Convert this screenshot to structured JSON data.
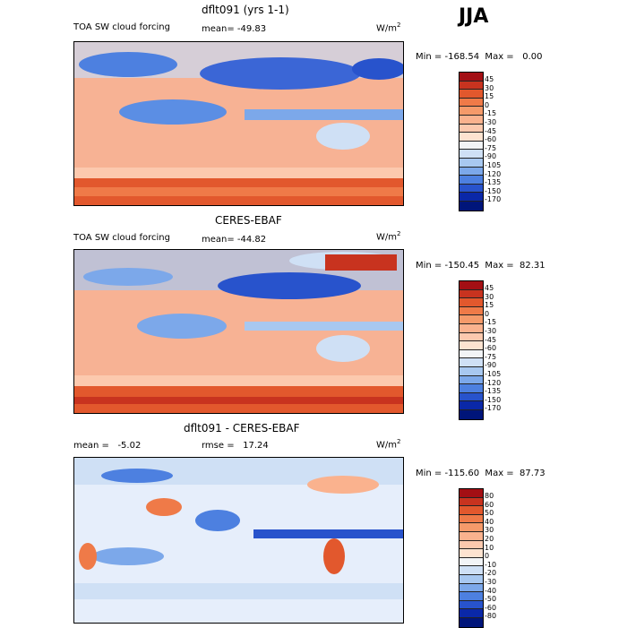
{
  "season": "JJA",
  "panels": [
    {
      "title": "dflt091 (yrs 1-1)",
      "left_label": "TOA SW cloud forcing",
      "mean_label": "mean= -49.83",
      "units": "W/m",
      "units_exp": "2",
      "minmax": "Min = -168.54  Max =   0.00",
      "colorbar_labels": [
        "45",
        "30",
        "15",
        "0",
        "-15",
        "-30",
        "-45",
        "-60",
        "-75",
        "-90",
        "-105",
        "-120",
        "-135",
        "-150",
        "-170"
      ],
      "colorbar_colors": [
        "#a30f14",
        "#c8331f",
        "#e2582d",
        "#ef7a48",
        "#f59a6a",
        "#fab28e",
        "#fcc9ae",
        "#fde3d0",
        "#f2f4f6",
        "#cfe0f5",
        "#a8c8f0",
        "#7ca8ea",
        "#4d80e0",
        "#2853cc",
        "#0a28a8",
        "#00157a"
      ]
    },
    {
      "title": "CERES-EBAF",
      "left_label": "TOA SW cloud forcing",
      "mean_label": "mean= -44.82",
      "units": "W/m",
      "units_exp": "2",
      "minmax": "Min = -150.45  Max =  82.31",
      "colorbar_labels": [
        "45",
        "30",
        "15",
        "0",
        "-15",
        "-30",
        "-45",
        "-60",
        "-75",
        "-90",
        "-105",
        "-120",
        "-135",
        "-150",
        "-170"
      ],
      "colorbar_colors": [
        "#a30f14",
        "#c8331f",
        "#e2582d",
        "#ef7a48",
        "#f59a6a",
        "#fab28e",
        "#fcc9ae",
        "#fde3d0",
        "#f2f4f6",
        "#cfe0f5",
        "#a8c8f0",
        "#7ca8ea",
        "#4d80e0",
        "#2853cc",
        "#0a28a8",
        "#00157a"
      ]
    },
    {
      "title": "dflt091 - CERES-EBAF",
      "left_label": "mean =   -5.02",
      "mean_label": "rmse =   17.24",
      "units": "W/m",
      "units_exp": "2",
      "minmax": "Min = -115.60  Max =  87.73",
      "colorbar_labels": [
        "80",
        "60",
        "50",
        "40",
        "30",
        "20",
        "10",
        "0",
        "-10",
        "-20",
        "-30",
        "-40",
        "-50",
        "-60",
        "-80"
      ],
      "colorbar_colors": [
        "#a30f14",
        "#c8331f",
        "#e2582d",
        "#ef7a48",
        "#f59a6a",
        "#fab28e",
        "#fcc9ae",
        "#fde3d0",
        "#f2f4f6",
        "#cfe0f5",
        "#a8c8f0",
        "#7ca8ea",
        "#4d80e0",
        "#2853cc",
        "#0a28a8",
        "#00157a"
      ]
    }
  ]
}
